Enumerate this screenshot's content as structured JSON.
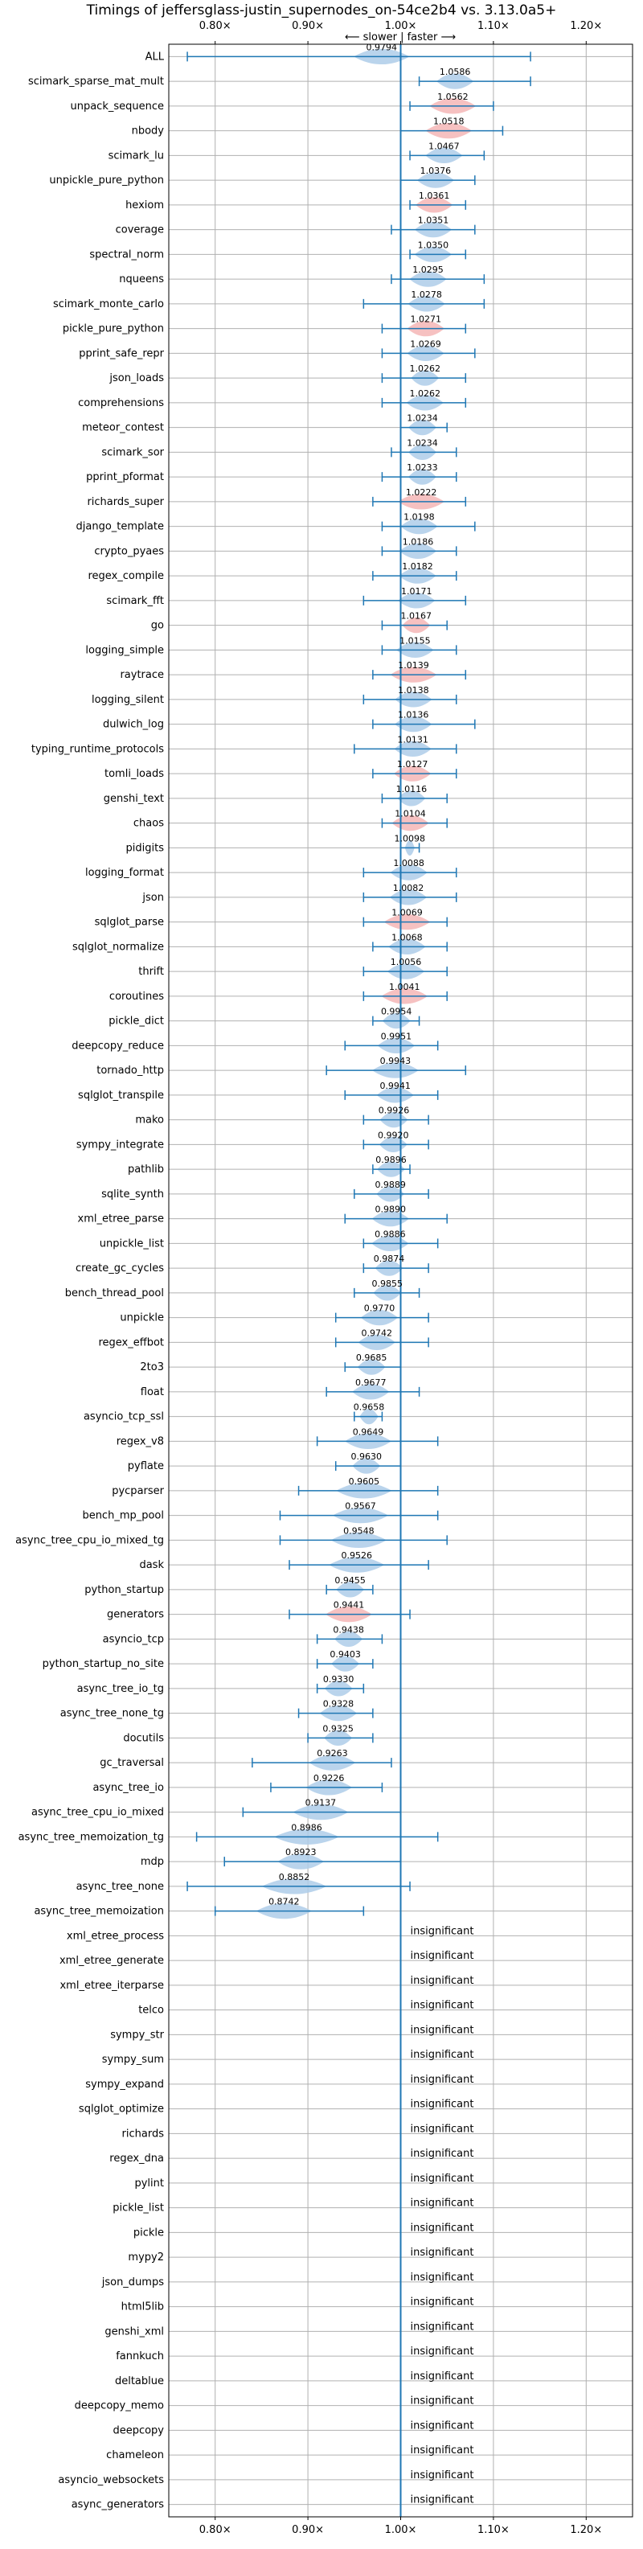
{
  "colors": {
    "faster": "#aecde9",
    "slower": "#f4b6b6",
    "stroke": "#1f77b4",
    "ref": "#1f77b4"
  },
  "chart_data": {
    "type": "violin",
    "title": "Timings of jeffersglass-justin_supernodes_on-54ce2b4 vs. 3.13.0a5+",
    "axis_note": "⟵ slower | faster ⟶",
    "xlim": [
      0.75,
      1.25
    ],
    "xticks": [
      0.8,
      0.9,
      1.0,
      1.1,
      1.2
    ],
    "xtick_labels": [
      "0.80×",
      "0.90×",
      "1.00×",
      "1.10×",
      "1.20×"
    ],
    "reference": 1.0,
    "grid": true,
    "rows": [
      {
        "name": "ALL",
        "value": 0.9794,
        "lo": 0.77,
        "hi": 1.14,
        "width": 0.06,
        "color": "blue",
        "label": "0.9794"
      },
      {
        "name": "scimark_sparse_mat_mult",
        "value": 1.0586,
        "lo": 1.02,
        "hi": 1.14,
        "width": 0.04,
        "color": "blue",
        "label": "1.0586"
      },
      {
        "name": "unpack_sequence",
        "value": 1.0562,
        "lo": 1.01,
        "hi": 1.1,
        "width": 0.05,
        "color": "red",
        "label": "1.0562"
      },
      {
        "name": "nbody",
        "value": 1.0518,
        "lo": 1.0,
        "hi": 1.11,
        "width": 0.05,
        "color": "red",
        "label": "1.0518"
      },
      {
        "name": "scimark_lu",
        "value": 1.0467,
        "lo": 1.01,
        "hi": 1.09,
        "width": 0.04,
        "color": "blue",
        "label": "1.0467"
      },
      {
        "name": "unpickle_pure_python",
        "value": 1.0376,
        "lo": 1.0,
        "hi": 1.08,
        "width": 0.04,
        "color": "blue",
        "label": "1.0376"
      },
      {
        "name": "hexiom",
        "value": 1.0361,
        "lo": 1.01,
        "hi": 1.07,
        "width": 0.04,
        "color": "red",
        "label": "1.0361"
      },
      {
        "name": "coverage",
        "value": 1.0351,
        "lo": 0.99,
        "hi": 1.08,
        "width": 0.04,
        "color": "blue",
        "label": "1.0351"
      },
      {
        "name": "spectral_norm",
        "value": 1.035,
        "lo": 1.01,
        "hi": 1.07,
        "width": 0.04,
        "color": "blue",
        "label": "1.0350"
      },
      {
        "name": "nqueens",
        "value": 1.0295,
        "lo": 0.99,
        "hi": 1.09,
        "width": 0.04,
        "color": "blue",
        "label": "1.0295"
      },
      {
        "name": "scimark_monte_carlo",
        "value": 1.0278,
        "lo": 0.96,
        "hi": 1.09,
        "width": 0.04,
        "color": "blue",
        "label": "1.0278"
      },
      {
        "name": "pickle_pure_python",
        "value": 1.0271,
        "lo": 0.98,
        "hi": 1.07,
        "width": 0.04,
        "color": "red",
        "label": "1.0271"
      },
      {
        "name": "pprint_safe_repr",
        "value": 1.0269,
        "lo": 0.98,
        "hi": 1.08,
        "width": 0.04,
        "color": "blue",
        "label": "1.0269"
      },
      {
        "name": "json_loads",
        "value": 1.0262,
        "lo": 0.98,
        "hi": 1.07,
        "width": 0.03,
        "color": "blue",
        "label": "1.0262"
      },
      {
        "name": "comprehensions",
        "value": 1.0262,
        "lo": 0.98,
        "hi": 1.07,
        "width": 0.04,
        "color": "blue",
        "label": "1.0262"
      },
      {
        "name": "meteor_contest",
        "value": 1.0234,
        "lo": 1.0,
        "hi": 1.05,
        "width": 0.03,
        "color": "blue",
        "label": "1.0234"
      },
      {
        "name": "scimark_sor",
        "value": 1.0234,
        "lo": 0.99,
        "hi": 1.06,
        "width": 0.03,
        "color": "blue",
        "label": "1.0234"
      },
      {
        "name": "pprint_pformat",
        "value": 1.0233,
        "lo": 0.98,
        "hi": 1.06,
        "width": 0.03,
        "color": "blue",
        "label": "1.0233"
      },
      {
        "name": "richards_super",
        "value": 1.0222,
        "lo": 0.97,
        "hi": 1.07,
        "width": 0.05,
        "color": "red",
        "label": "1.0222"
      },
      {
        "name": "django_template",
        "value": 1.0198,
        "lo": 0.98,
        "hi": 1.08,
        "width": 0.04,
        "color": "blue",
        "label": "1.0198"
      },
      {
        "name": "crypto_pyaes",
        "value": 1.0186,
        "lo": 0.98,
        "hi": 1.06,
        "width": 0.04,
        "color": "blue",
        "label": "1.0186"
      },
      {
        "name": "regex_compile",
        "value": 1.0182,
        "lo": 0.97,
        "hi": 1.06,
        "width": 0.04,
        "color": "blue",
        "label": "1.0182"
      },
      {
        "name": "scimark_fft",
        "value": 1.0171,
        "lo": 0.96,
        "hi": 1.07,
        "width": 0.04,
        "color": "blue",
        "label": "1.0171"
      },
      {
        "name": "go",
        "value": 1.0167,
        "lo": 0.98,
        "hi": 1.05,
        "width": 0.03,
        "color": "red",
        "label": "1.0167"
      },
      {
        "name": "logging_simple",
        "value": 1.0155,
        "lo": 0.98,
        "hi": 1.06,
        "width": 0.04,
        "color": "blue",
        "label": "1.0155"
      },
      {
        "name": "raytrace",
        "value": 1.0139,
        "lo": 0.97,
        "hi": 1.07,
        "width": 0.05,
        "color": "red",
        "label": "1.0139"
      },
      {
        "name": "logging_silent",
        "value": 1.0138,
        "lo": 0.96,
        "hi": 1.06,
        "width": 0.04,
        "color": "blue",
        "label": "1.0138"
      },
      {
        "name": "dulwich_log",
        "value": 1.0136,
        "lo": 0.97,
        "hi": 1.08,
        "width": 0.04,
        "color": "blue",
        "label": "1.0136"
      },
      {
        "name": "typing_runtime_protocols",
        "value": 1.0131,
        "lo": 0.95,
        "hi": 1.06,
        "width": 0.04,
        "color": "blue",
        "label": "1.0131"
      },
      {
        "name": "tomli_loads",
        "value": 1.0127,
        "lo": 0.97,
        "hi": 1.06,
        "width": 0.04,
        "color": "red",
        "label": "1.0127"
      },
      {
        "name": "genshi_text",
        "value": 1.0116,
        "lo": 0.98,
        "hi": 1.05,
        "width": 0.03,
        "color": "blue",
        "label": "1.0116"
      },
      {
        "name": "chaos",
        "value": 1.0104,
        "lo": 0.98,
        "hi": 1.05,
        "width": 0.04,
        "color": "red",
        "label": "1.0104"
      },
      {
        "name": "pidigits",
        "value": 1.0098,
        "lo": 1.0,
        "hi": 1.02,
        "width": 0.01,
        "color": "blue",
        "label": "1.0098"
      },
      {
        "name": "logging_format",
        "value": 1.0088,
        "lo": 0.96,
        "hi": 1.06,
        "width": 0.04,
        "color": "blue",
        "label": "1.0088"
      },
      {
        "name": "json",
        "value": 1.0082,
        "lo": 0.96,
        "hi": 1.06,
        "width": 0.04,
        "color": "blue",
        "label": "1.0082"
      },
      {
        "name": "sqlglot_parse",
        "value": 1.0069,
        "lo": 0.96,
        "hi": 1.05,
        "width": 0.05,
        "color": "red",
        "label": "1.0069"
      },
      {
        "name": "sqlglot_normalize",
        "value": 1.0068,
        "lo": 0.97,
        "hi": 1.05,
        "width": 0.04,
        "color": "blue",
        "label": "1.0068"
      },
      {
        "name": "thrift",
        "value": 1.0056,
        "lo": 0.96,
        "hi": 1.05,
        "width": 0.04,
        "color": "blue",
        "label": "1.0056"
      },
      {
        "name": "coroutines",
        "value": 1.0041,
        "lo": 0.96,
        "hi": 1.05,
        "width": 0.05,
        "color": "red",
        "label": "1.0041"
      },
      {
        "name": "pickle_dict",
        "value": 0.9954,
        "lo": 0.97,
        "hi": 1.02,
        "width": 0.03,
        "color": "blue",
        "label": "0.9954"
      },
      {
        "name": "deepcopy_reduce",
        "value": 0.9951,
        "lo": 0.94,
        "hi": 1.04,
        "width": 0.04,
        "color": "blue",
        "label": "0.9951"
      },
      {
        "name": "tornado_http",
        "value": 0.9943,
        "lo": 0.92,
        "hi": 1.07,
        "width": 0.05,
        "color": "blue",
        "label": "0.9943"
      },
      {
        "name": "sqlglot_transpile",
        "value": 0.9941,
        "lo": 0.94,
        "hi": 1.04,
        "width": 0.04,
        "color": "blue",
        "label": "0.9941"
      },
      {
        "name": "mako",
        "value": 0.9926,
        "lo": 0.96,
        "hi": 1.03,
        "width": 0.03,
        "color": "blue",
        "label": "0.9926"
      },
      {
        "name": "sympy_integrate",
        "value": 0.992,
        "lo": 0.96,
        "hi": 1.03,
        "width": 0.03,
        "color": "blue",
        "label": "0.9920"
      },
      {
        "name": "pathlib",
        "value": 0.9896,
        "lo": 0.97,
        "hi": 1.01,
        "width": 0.03,
        "color": "blue",
        "label": "0.9896"
      },
      {
        "name": "sqlite_synth",
        "value": 0.9889,
        "lo": 0.95,
        "hi": 1.03,
        "width": 0.03,
        "color": "blue",
        "label": "0.9889"
      },
      {
        "name": "xml_etree_parse",
        "value": 0.989,
        "lo": 0.94,
        "hi": 1.05,
        "width": 0.04,
        "color": "blue",
        "label": "0.9890"
      },
      {
        "name": "unpickle_list",
        "value": 0.9886,
        "lo": 0.96,
        "hi": 1.04,
        "width": 0.04,
        "color": "blue",
        "label": "0.9886"
      },
      {
        "name": "create_gc_cycles",
        "value": 0.9874,
        "lo": 0.96,
        "hi": 1.03,
        "width": 0.03,
        "color": "blue",
        "label": "0.9874"
      },
      {
        "name": "bench_thread_pool",
        "value": 0.9855,
        "lo": 0.95,
        "hi": 1.02,
        "width": 0.03,
        "color": "blue",
        "label": "0.9855"
      },
      {
        "name": "unpickle",
        "value": 0.977,
        "lo": 0.93,
        "hi": 1.03,
        "width": 0.04,
        "color": "blue",
        "label": "0.9770"
      },
      {
        "name": "regex_effbot",
        "value": 0.9742,
        "lo": 0.93,
        "hi": 1.03,
        "width": 0.04,
        "color": "blue",
        "label": "0.9742"
      },
      {
        "name": "2to3",
        "value": 0.9685,
        "lo": 0.94,
        "hi": 1.0,
        "width": 0.03,
        "color": "blue",
        "label": "0.9685"
      },
      {
        "name": "float",
        "value": 0.9677,
        "lo": 0.92,
        "hi": 1.02,
        "width": 0.04,
        "color": "blue",
        "label": "0.9677"
      },
      {
        "name": "asyncio_tcp_ssl",
        "value": 0.9658,
        "lo": 0.95,
        "hi": 0.98,
        "width": 0.02,
        "color": "blue",
        "label": "0.9658"
      },
      {
        "name": "regex_v8",
        "value": 0.9649,
        "lo": 0.91,
        "hi": 1.04,
        "width": 0.05,
        "color": "blue",
        "label": "0.9649"
      },
      {
        "name": "pyflate",
        "value": 0.963,
        "lo": 0.93,
        "hi": 1.0,
        "width": 0.03,
        "color": "blue",
        "label": "0.9630"
      },
      {
        "name": "pycparser",
        "value": 0.9605,
        "lo": 0.89,
        "hi": 1.04,
        "width": 0.06,
        "color": "blue",
        "label": "0.9605"
      },
      {
        "name": "bench_mp_pool",
        "value": 0.9567,
        "lo": 0.87,
        "hi": 1.04,
        "width": 0.06,
        "color": "blue",
        "label": "0.9567"
      },
      {
        "name": "async_tree_cpu_io_mixed_tg",
        "value": 0.9548,
        "lo": 0.87,
        "hi": 1.05,
        "width": 0.06,
        "color": "blue",
        "label": "0.9548"
      },
      {
        "name": "dask",
        "value": 0.9526,
        "lo": 0.88,
        "hi": 1.03,
        "width": 0.06,
        "color": "blue",
        "label": "0.9526"
      },
      {
        "name": "python_startup",
        "value": 0.9455,
        "lo": 0.92,
        "hi": 0.97,
        "width": 0.03,
        "color": "blue",
        "label": "0.9455"
      },
      {
        "name": "generators",
        "value": 0.9441,
        "lo": 0.88,
        "hi": 1.01,
        "width": 0.05,
        "color": "red",
        "label": "0.9441"
      },
      {
        "name": "asyncio_tcp",
        "value": 0.9438,
        "lo": 0.91,
        "hi": 0.98,
        "width": 0.03,
        "color": "blue",
        "label": "0.9438"
      },
      {
        "name": "python_startup_no_site",
        "value": 0.9403,
        "lo": 0.91,
        "hi": 0.97,
        "width": 0.03,
        "color": "blue",
        "label": "0.9403"
      },
      {
        "name": "async_tree_io_tg",
        "value": 0.933,
        "lo": 0.91,
        "hi": 0.96,
        "width": 0.03,
        "color": "blue",
        "label": "0.9330"
      },
      {
        "name": "async_tree_none_tg",
        "value": 0.9328,
        "lo": 0.89,
        "hi": 0.97,
        "width": 0.04,
        "color": "blue",
        "label": "0.9328"
      },
      {
        "name": "docutils",
        "value": 0.9325,
        "lo": 0.9,
        "hi": 0.97,
        "width": 0.03,
        "color": "blue",
        "label": "0.9325"
      },
      {
        "name": "gc_traversal",
        "value": 0.9263,
        "lo": 0.84,
        "hi": 0.99,
        "width": 0.05,
        "color": "blue",
        "label": "0.9263"
      },
      {
        "name": "async_tree_io",
        "value": 0.9226,
        "lo": 0.86,
        "hi": 0.98,
        "width": 0.05,
        "color": "blue",
        "label": "0.9226"
      },
      {
        "name": "async_tree_cpu_io_mixed",
        "value": 0.9137,
        "lo": 0.83,
        "hi": 1.0,
        "width": 0.06,
        "color": "blue",
        "label": "0.9137"
      },
      {
        "name": "async_tree_memoization_tg",
        "value": 0.8986,
        "lo": 0.78,
        "hi": 1.04,
        "width": 0.07,
        "color": "blue",
        "label": "0.8986"
      },
      {
        "name": "mdp",
        "value": 0.8923,
        "lo": 0.81,
        "hi": 1.0,
        "width": 0.05,
        "color": "blue",
        "label": "0.8923"
      },
      {
        "name": "async_tree_none",
        "value": 0.8852,
        "lo": 0.77,
        "hi": 1.01,
        "width": 0.07,
        "color": "blue",
        "label": "0.8852"
      },
      {
        "name": "async_tree_memoization",
        "value": 0.8742,
        "lo": 0.8,
        "hi": 0.96,
        "width": 0.06,
        "color": "blue",
        "label": "0.8742"
      },
      {
        "name": "xml_etree_process",
        "value": null,
        "label": "insignificant"
      },
      {
        "name": "xml_etree_generate",
        "value": null,
        "label": "insignificant"
      },
      {
        "name": "xml_etree_iterparse",
        "value": null,
        "label": "insignificant"
      },
      {
        "name": "telco",
        "value": null,
        "label": "insignificant"
      },
      {
        "name": "sympy_str",
        "value": null,
        "label": "insignificant"
      },
      {
        "name": "sympy_sum",
        "value": null,
        "label": "insignificant"
      },
      {
        "name": "sympy_expand",
        "value": null,
        "label": "insignificant"
      },
      {
        "name": "sqlglot_optimize",
        "value": null,
        "label": "insignificant"
      },
      {
        "name": "richards",
        "value": null,
        "label": "insignificant"
      },
      {
        "name": "regex_dna",
        "value": null,
        "label": "insignificant"
      },
      {
        "name": "pylint",
        "value": null,
        "label": "insignificant"
      },
      {
        "name": "pickle_list",
        "value": null,
        "label": "insignificant"
      },
      {
        "name": "pickle",
        "value": null,
        "label": "insignificant"
      },
      {
        "name": "mypy2",
        "value": null,
        "label": "insignificant"
      },
      {
        "name": "json_dumps",
        "value": null,
        "label": "insignificant"
      },
      {
        "name": "html5lib",
        "value": null,
        "label": "insignificant"
      },
      {
        "name": "genshi_xml",
        "value": null,
        "label": "insignificant"
      },
      {
        "name": "fannkuch",
        "value": null,
        "label": "insignificant"
      },
      {
        "name": "deltablue",
        "value": null,
        "label": "insignificant"
      },
      {
        "name": "deepcopy_memo",
        "value": null,
        "label": "insignificant"
      },
      {
        "name": "deepcopy",
        "value": null,
        "label": "insignificant"
      },
      {
        "name": "chameleon",
        "value": null,
        "label": "insignificant"
      },
      {
        "name": "asyncio_websockets",
        "value": null,
        "label": "insignificant"
      },
      {
        "name": "async_generators",
        "value": null,
        "label": "insignificant"
      }
    ]
  }
}
